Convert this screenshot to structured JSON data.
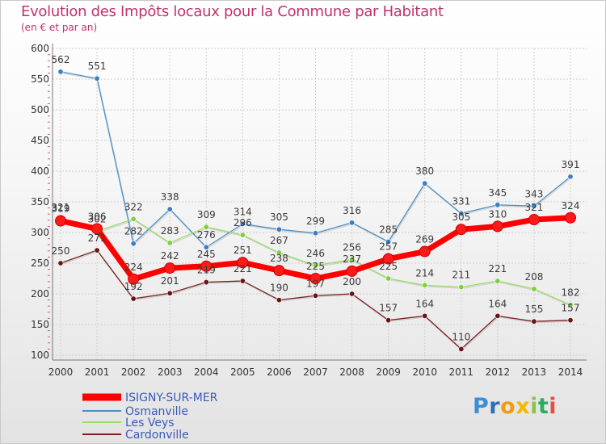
{
  "title": "Evolution des Impôts locaux pour la Commune par Habitant",
  "subtitle": "(en € et par an)",
  "brand": {
    "text": "Proxiti",
    "colors": [
      "#3b8fd6",
      "#2e6fb8",
      "#f39c12",
      "#f5b800",
      "#8bc34a",
      "#27ae60",
      "#e74c3c"
    ]
  },
  "chart_data": {
    "type": "line",
    "title": "Evolution des Impôts locaux pour la Commune par Habitant",
    "subtitle": "(en € et par an)",
    "xlabel": "",
    "ylabel": "",
    "ylim": [
      100,
      600
    ],
    "yticks": [
      100,
      150,
      200,
      250,
      300,
      350,
      400,
      450,
      500,
      550,
      600
    ],
    "grid": true,
    "legend_position": "bottom-left",
    "categories": [
      "2000",
      "2001",
      "2002",
      "2003",
      "2004",
      "2005",
      "2006",
      "2007",
      "2008",
      "2009",
      "2010",
      "2011",
      "2012",
      "2013",
      "2014"
    ],
    "series": [
      {
        "name": "ISIGNY-SUR-MER",
        "color": "#ff0000",
        "marker": "#ff1a1a",
        "emphasis": true,
        "values": [
          319,
          306,
          224,
          242,
          245,
          251,
          238,
          225,
          237,
          257,
          269,
          305,
          310,
          321,
          324
        ],
        "labels": [
          "319",
          "306",
          "224",
          "242",
          "245",
          "251",
          "238",
          "225",
          "237",
          "257",
          "269",
          "305",
          "310",
          "321",
          "324"
        ]
      },
      {
        "name": "Osmanville",
        "color": "#4a8fc8",
        "marker": "#3a7fbf",
        "values": [
          562,
          551,
          282,
          338,
          276,
          314,
          305,
          299,
          316,
          285,
          380,
          331,
          345,
          343,
          391
        ],
        "labels": [
          "562",
          "551",
          "282",
          "338",
          "276",
          "314",
          "305",
          "299",
          "316",
          "285",
          "380",
          "331",
          "345",
          "343",
          "391"
        ]
      },
      {
        "name": "Les Veys",
        "color": "#99dd66",
        "marker": "#7ecf3c",
        "values": [
          321,
          302,
          322,
          283,
          309,
          296,
          267,
          246,
          256,
          225,
          214,
          211,
          221,
          208,
          182
        ],
        "labels": [
          "321",
          "302",
          "322",
          "283",
          "309",
          "296",
          "267",
          "246",
          "256",
          "225",
          "214",
          "211",
          "221",
          "208",
          "182"
        ]
      },
      {
        "name": "Cardonville",
        "color": "#7a2020",
        "marker": "#6b1414",
        "values": [
          250,
          271,
          192,
          201,
          219,
          221,
          190,
          197,
          200,
          157,
          164,
          110,
          164,
          155,
          157
        ],
        "labels": [
          "250",
          "271",
          "192",
          "201",
          "219",
          "221",
          "190",
          "197",
          "200",
          "157",
          "164",
          "110",
          "164",
          "155",
          "157"
        ]
      }
    ]
  }
}
